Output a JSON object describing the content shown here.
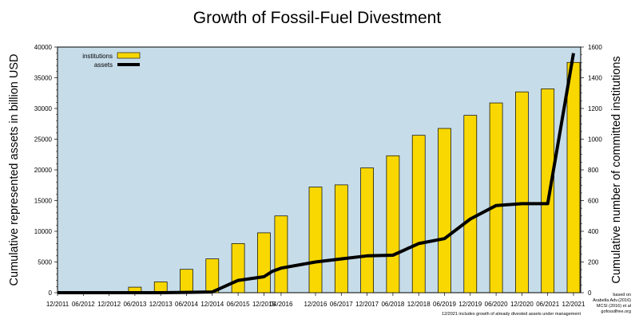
{
  "chart_data": {
    "type": "bar",
    "title": "Growth of Fossil-Fuel Divestment",
    "ylabel": "Cumulative represented assets in billion USD",
    "y2label": "Cumulative number of committed institutions",
    "ylim": [
      0,
      40000
    ],
    "y2lim": [
      0,
      1600
    ],
    "y_ticks": [
      0,
      5000,
      10000,
      15000,
      20000,
      25000,
      30000,
      35000,
      40000
    ],
    "y2_ticks": [
      0,
      200,
      400,
      600,
      800,
      1000,
      1200,
      1400,
      1600
    ],
    "x_tick_labels": [
      "12/2011",
      "06/2012",
      "12/2012",
      "06/2013",
      "12/2013",
      "06/2014",
      "12/2014",
      "06/2015",
      "12/2015",
      "04/2016",
      "12/2016",
      "06/2017",
      "12/2017",
      "06/2018",
      "12/2018",
      "06/2019",
      "12/2019",
      "06/2020",
      "12/2020",
      "06/2021",
      "12/2021"
    ],
    "grid": false,
    "legend": "top-left",
    "background_color": "#c6dce9",
    "series": [
      {
        "name": "institutions",
        "type": "bar",
        "axis": "right",
        "color": "#f8d800",
        "x": [
          "06/2013",
          "12/2013",
          "06/2014",
          "12/2014",
          "06/2015",
          "12/2015",
          "04/2016",
          "12/2016",
          "06/2017",
          "12/2017",
          "06/2018",
          "12/2018",
          "06/2019",
          "12/2019",
          "06/2020",
          "12/2020",
          "06/2021",
          "12/2021"
        ],
        "values": [
          36,
          70,
          152,
          220,
          320,
          390,
          500,
          688,
          702,
          813,
          892,
          1025,
          1070,
          1155,
          1236,
          1308,
          1328,
          1500
        ]
      },
      {
        "name": "assets",
        "type": "line",
        "axis": "left",
        "color": "#000000",
        "x": [
          "12/2011",
          "06/2012",
          "12/2012",
          "06/2013",
          "12/2013",
          "06/2014",
          "12/2014",
          "06/2015",
          "12/2015",
          "02/2016",
          "04/2016",
          "12/2016",
          "06/2017",
          "12/2017",
          "06/2018",
          "12/2018",
          "06/2019",
          "12/2019",
          "06/2020",
          "12/2020",
          "06/2021",
          "12/2021"
        ],
        "values": [
          0,
          0,
          0,
          0,
          0,
          50,
          120,
          2000,
          2600,
          3500,
          4000,
          5000,
          5500,
          6000,
          6100,
          8000,
          8800,
          12000,
          14200,
          14500,
          14500,
          39000
        ]
      }
    ],
    "notes": [
      "based on",
      "Arabella Adv.(2016)",
      "MCSI (2016) et al",
      "gofossilfree.org",
      "12/2021 includes growth of already divested assets under management"
    ]
  }
}
